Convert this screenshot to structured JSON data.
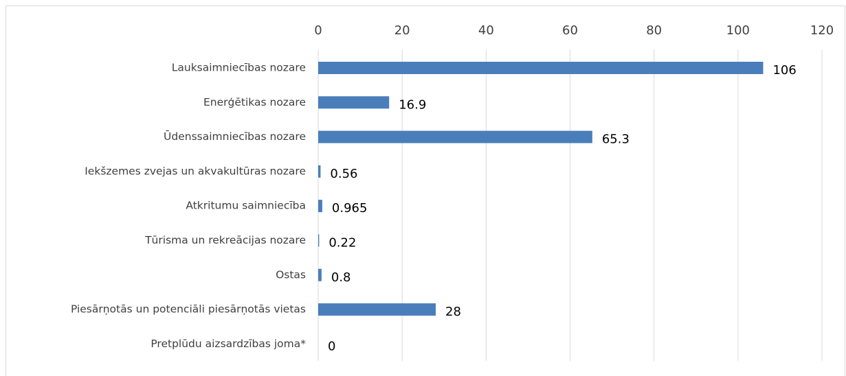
{
  "chart_data": {
    "type": "bar",
    "orientation": "horizontal",
    "categories": [
      "Lauksaimniecības nozare",
      "Enerģētikas nozare",
      "Ūdenssaimniecības nozare",
      "Iekšzemes zvejas un akvakultūras nozare",
      "Atkritumu saimniecība",
      "Tūrisma un rekreācijas nozare",
      "Ostas",
      "Piesārņotās un potenciāli piesārņotās vietas",
      "Pretplūdu aizsardzības joma*"
    ],
    "values": [
      106,
      16.9,
      65.3,
      0.56,
      0.965,
      0.22,
      0.8,
      28,
      0
    ],
    "color": "#4a7ebb",
    "xlim": [
      0,
      120
    ],
    "xticks": [
      0,
      20,
      40,
      60,
      80,
      100,
      120
    ],
    "grid": true
  }
}
